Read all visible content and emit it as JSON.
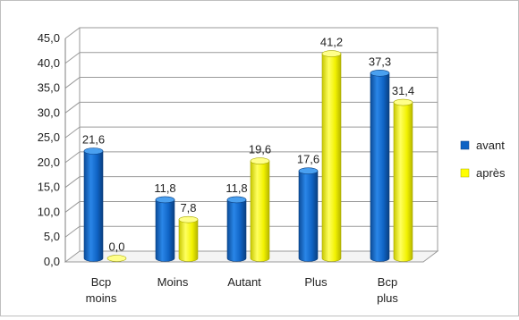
{
  "chart_data": {
    "type": "bar",
    "categories": [
      [
        "Bcp",
        "moins"
      ],
      [
        "Moins"
      ],
      [
        "Autant"
      ],
      [
        "Plus"
      ],
      [
        "Bcp",
        "plus"
      ]
    ],
    "series": [
      {
        "name": "avant",
        "color": "#0f63c4",
        "values": [
          21.6,
          11.8,
          11.8,
          17.6,
          37.3
        ],
        "labels": [
          "21,6",
          "11,8",
          "11,8",
          "17,6",
          "37,3"
        ]
      },
      {
        "name": "après",
        "color": "#ffff00",
        "values": [
          0.0,
          7.8,
          19.6,
          41.2,
          31.4
        ],
        "labels": [
          "0,0",
          "7,8",
          "19,6",
          "41,2",
          "31,4"
        ]
      }
    ],
    "ylim": [
      0,
      45
    ],
    "yticks": [
      "0,0",
      "5,0",
      "10,0",
      "15,0",
      "20,0",
      "25,0",
      "30,0",
      "35,0",
      "40,0",
      "45,0"
    ],
    "grid": true,
    "legend_position": "right",
    "style": "3d-cylinder"
  }
}
